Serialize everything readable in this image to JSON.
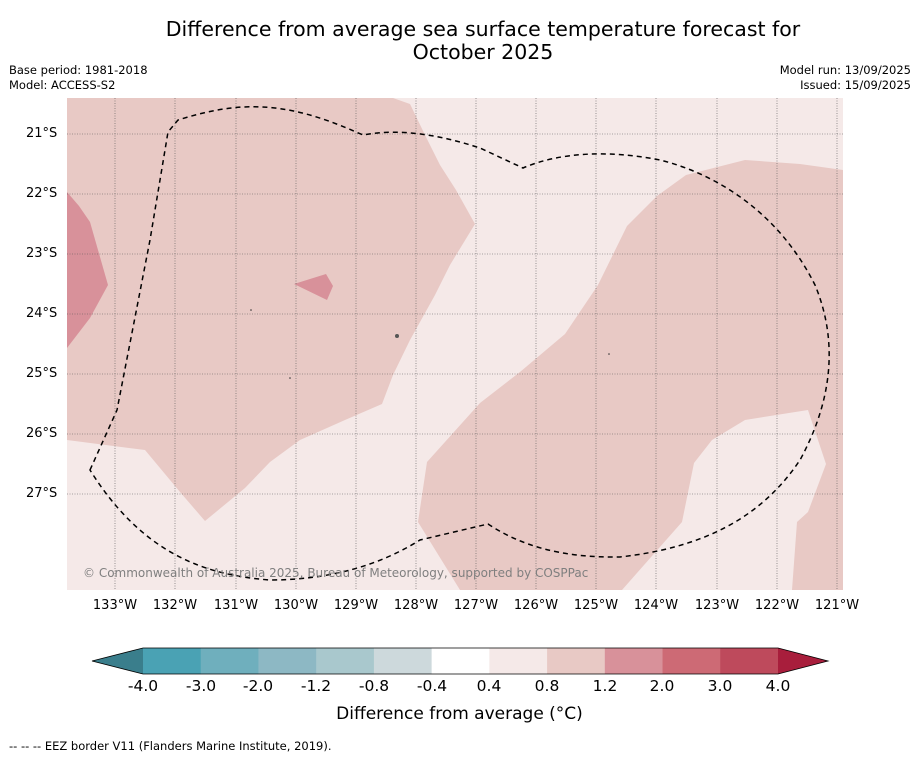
{
  "title_line1": "Difference from average sea surface temperature forecast for",
  "title_line2": "October 2025",
  "base_period": "Base period: 1981-2018",
  "model": "Model: ACCESS-S2",
  "model_run": "Model run: 13/09/2025",
  "issued": "Issued: 15/09/2025",
  "latitudes": [
    "21°S",
    "22°S",
    "23°S",
    "24°S",
    "25°S",
    "26°S",
    "27°S"
  ],
  "longitudes": [
    "133°W",
    "132°W",
    "131°W",
    "130°W",
    "129°W",
    "128°W",
    "127°W",
    "126°W",
    "125°W",
    "124°W",
    "123°W",
    "122°W",
    "121°W"
  ],
  "copyright": "© Commonwealth of Australia 2025, Bureau of Meteorology, supported by COSPPac",
  "colorbar": {
    "ticks": [
      "-4.0",
      "-3.0",
      "-2.0",
      "-1.2",
      "-0.8",
      "-0.4",
      "0.4",
      "0.8",
      "1.2",
      "2.0",
      "3.0",
      "4.0"
    ],
    "colors": [
      "#3a7e8c",
      "#4aa2b4",
      "#6fafbd",
      "#8db8c4",
      "#a9c8cd",
      "#cdd9dc",
      "#ffffff",
      "#f5e9e8",
      "#e8c9c5",
      "#d8919a",
      "#cd6a75",
      "#be4a5c",
      "#a81e3c"
    ],
    "label": "Difference from average (°C)"
  },
  "legend_note": "--  --  -- EEZ border V11 (Flanders Marine Institute, 2019)."
}
